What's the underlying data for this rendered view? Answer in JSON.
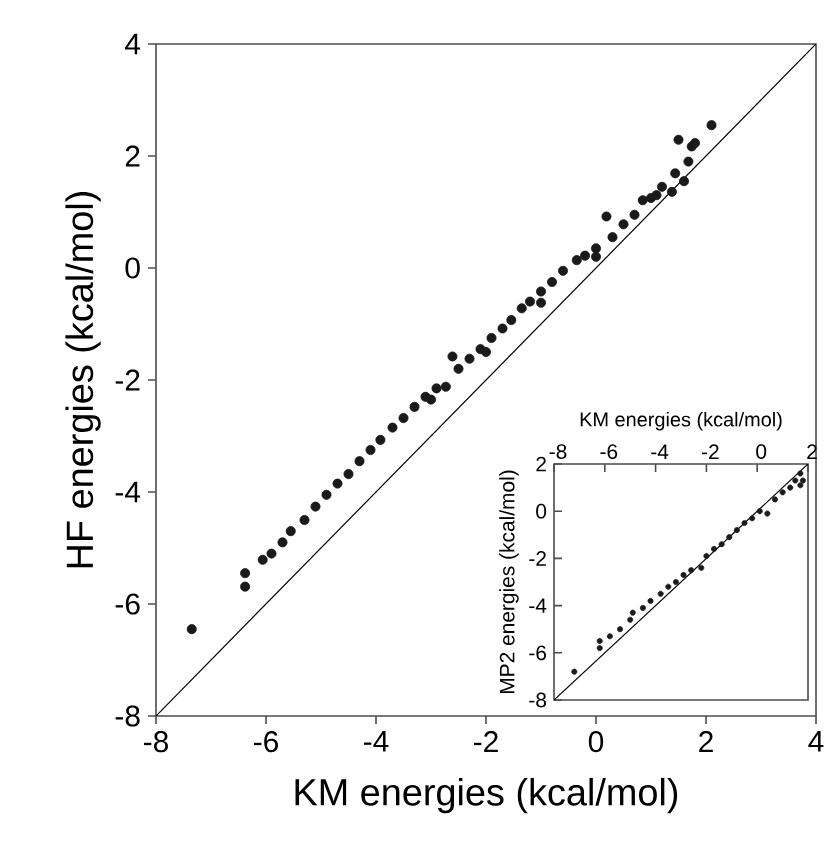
{
  "chart_data": [
    {
      "type": "scatter",
      "xlabel": "KM energies (kcal/mol)",
      "ylabel": "HF energies (kcal/mol)",
      "xlim": [
        -8,
        4
      ],
      "ylim": [
        -8,
        4
      ],
      "xticks": [
        -8,
        -6,
        -4,
        -2,
        0,
        2,
        4
      ],
      "yticks": [
        -8,
        -6,
        -4,
        -2,
        0,
        2,
        4
      ],
      "series": [
        {
          "marker": "circle",
          "color": "#1a1a1a",
          "x": [
            -7.35,
            -6.38,
            -6.38,
            -6.06,
            -5.9,
            -5.7,
            -5.55,
            -5.3,
            -5.1,
            -4.9,
            -4.7,
            -4.5,
            -4.3,
            -4.1,
            -3.92,
            -3.7,
            -3.5,
            -3.3,
            -3.1,
            -2.9,
            -2.73,
            -2.61,
            -2.5,
            -2.3,
            -2.1,
            -1.9,
            -1.7,
            -1.54,
            -1.35,
            -1.2,
            -1.0,
            -0.8,
            -0.6,
            -0.35,
            -0.2,
            0.0,
            0.19,
            0.3,
            0.5,
            0.7,
            0.85,
            1.0,
            1.2,
            1.38,
            1.44,
            1.5,
            1.6,
            1.68,
            1.74,
            1.8,
            2.1,
            -3.0,
            -2.0,
            -1.0,
            0.0,
            1.1
          ],
          "values": [
            -6.45,
            -5.45,
            -5.69,
            -5.21,
            -5.1,
            -4.9,
            -4.7,
            -4.5,
            -4.26,
            -4.05,
            -3.85,
            -3.68,
            -3.45,
            -3.25,
            -3.07,
            -2.85,
            -2.68,
            -2.48,
            -2.3,
            -2.15,
            -2.12,
            -1.58,
            -1.8,
            -1.62,
            -1.45,
            -1.25,
            -1.08,
            -0.93,
            -0.72,
            -0.6,
            -0.42,
            -0.25,
            -0.05,
            0.14,
            0.22,
            0.35,
            0.92,
            0.55,
            0.78,
            0.95,
            1.21,
            1.25,
            1.45,
            1.36,
            1.69,
            2.29,
            1.55,
            1.9,
            2.17,
            2.23,
            2.55,
            -2.35,
            -1.5,
            -0.62,
            0.2,
            1.3
          ]
        },
        {
          "type": "line",
          "marker": "none",
          "color": "#000000",
          "x": [
            -8,
            4
          ],
          "values": [
            -8,
            4
          ]
        }
      ]
    },
    {
      "type": "scatter",
      "xlabel": "KM energies (kcal/mol)",
      "ylabel": "MP2 energies (kcal/mol)",
      "xlim": [
        -8,
        2
      ],
      "ylim": [
        -8,
        2
      ],
      "xticks": [
        -8,
        -6,
        -4,
        -2,
        0,
        2
      ],
      "yticks": [
        -8,
        -6,
        -4,
        -2,
        0,
        2
      ],
      "series": [
        {
          "marker": "circle",
          "color": "#1a1a1a",
          "x": [
            -7.2,
            -6.2,
            -6.2,
            -5.8,
            -5.4,
            -5.0,
            -4.9,
            -4.5,
            -4.2,
            -3.8,
            -3.5,
            -3.2,
            -2.9,
            -2.6,
            -2.2,
            -2.0,
            -1.7,
            -1.4,
            -1.1,
            -0.8,
            -0.5,
            -0.2,
            0.1,
            0.4,
            0.7,
            1.0,
            1.3,
            1.5,
            1.7,
            1.7,
            1.8
          ],
          "values": [
            -6.8,
            -5.5,
            -5.8,
            -5.3,
            -5.0,
            -4.6,
            -4.3,
            -4.1,
            -3.8,
            -3.5,
            -3.2,
            -3.0,
            -2.7,
            -2.5,
            -2.4,
            -1.9,
            -1.6,
            -1.4,
            -1.1,
            -0.8,
            -0.5,
            -0.3,
            0.0,
            -0.1,
            0.5,
            0.8,
            1.0,
            1.3,
            1.6,
            1.1,
            1.3
          ]
        },
        {
          "type": "line",
          "marker": "none",
          "color": "#000000",
          "x": [
            -8,
            2
          ],
          "values": [
            -8,
            2
          ]
        }
      ]
    }
  ]
}
